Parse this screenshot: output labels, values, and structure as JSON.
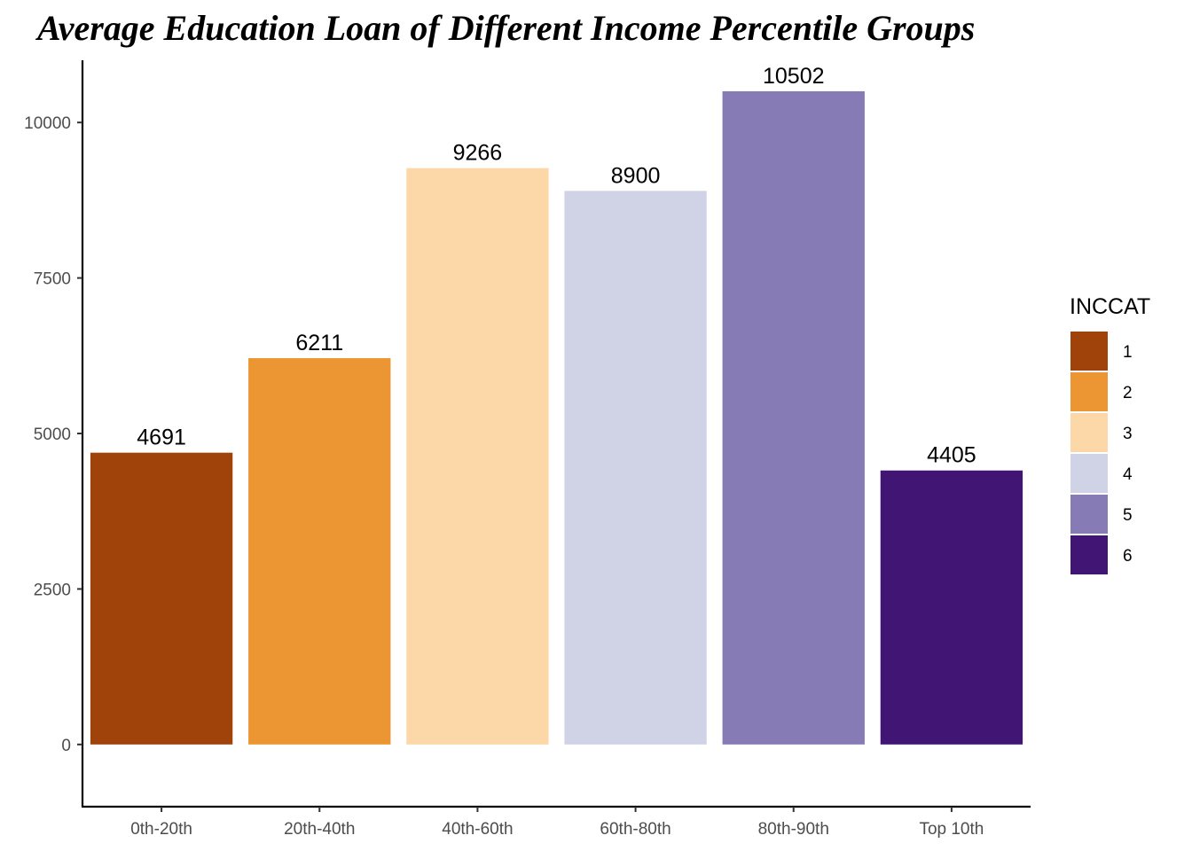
{
  "chart_data": {
    "type": "bar",
    "title": "Average Education Loan of Different Income Percentile Groups",
    "xlabel": "",
    "ylabel": "",
    "categories": [
      "0th-20th",
      "20th-40th",
      "40th-60th",
      "60th-80th",
      "80th-90th",
      "Top 10th"
    ],
    "values": [
      4691,
      6211,
      9266,
      8900,
      10502,
      4405
    ],
    "data_labels": [
      "4691",
      "6211",
      "9266",
      "8900",
      "10502",
      "4405"
    ],
    "ylim": [
      -1000,
      11000
    ],
    "yticks": [
      0,
      2500,
      5000,
      7500,
      10000
    ],
    "ytick_labels": [
      "0",
      "2500",
      "5000",
      "7500",
      "10000"
    ],
    "grid": false,
    "legend": {
      "title": "INCCAT",
      "placement": "right",
      "items": [
        {
          "label": "1",
          "color": "#A0430A"
        },
        {
          "label": "2",
          "color": "#EB9533"
        },
        {
          "label": "3",
          "color": "#FCD8A8"
        },
        {
          "label": "4",
          "color": "#D0D2E6"
        },
        {
          "label": "5",
          "color": "#877BB6"
        },
        {
          "label": "6",
          "color": "#411573"
        }
      ]
    },
    "colors": [
      "#A0430A",
      "#EB9533",
      "#FCD8A8",
      "#D0D2E6",
      "#877BB6",
      "#411573"
    ]
  }
}
